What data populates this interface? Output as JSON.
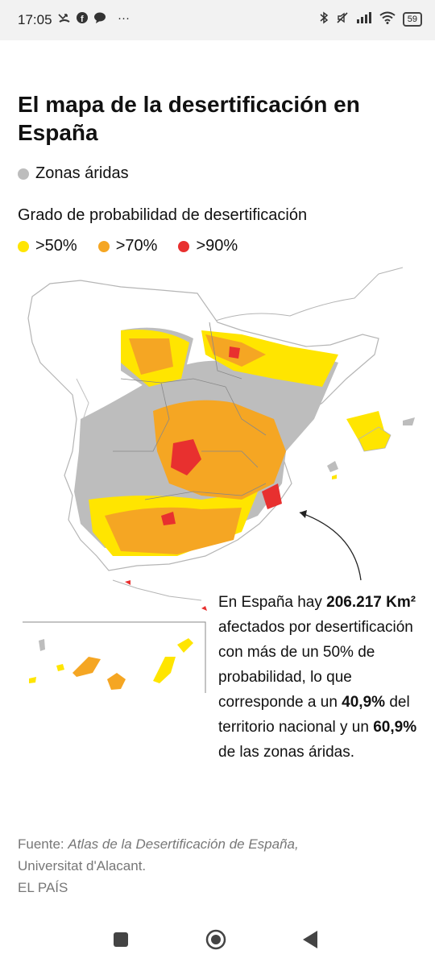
{
  "status_bar": {
    "time": "17:05",
    "left_icons": [
      "missed-call-icon",
      "facebook-icon",
      "chat-bubble-icon",
      "more-icon"
    ],
    "right_icons": [
      "bluetooth-icon",
      "muted-icon",
      "signal-icon",
      "wifi-icon",
      "battery-icon"
    ],
    "more_glyph": "···",
    "battery": "59"
  },
  "article": {
    "title": "El mapa de la desertificación en España",
    "legend_arid_label": "Zonas áridas",
    "legend_heading": "Grado de probabilidad de desertificación",
    "legend_levels": [
      {
        "label": ">50%",
        "color": "#ffe500"
      },
      {
        "label": ">70%",
        "color": "#f5a623"
      },
      {
        "label": ">90%",
        "color": "#e8302f"
      }
    ],
    "colors": {
      "arid": "#bdbdbd",
      "border": "#888888",
      "land_outline": "#b5b5b5"
    },
    "callout": {
      "p1": "En España hay ",
      "b1": "206.217 Km²",
      "p2": " afectados por desertificación con más de un 50% de probabilidad, lo que corresponde a un ",
      "b2": "40,9%",
      "p3": " del territorio nacional y un ",
      "b3": "60,9%",
      "p4": " de las zonas áridas."
    },
    "source": {
      "prefix": "Fuente: ",
      "title_italic": "Atlas de la Desertificación de España,",
      "institution": "Universitat d'Alacant.",
      "publisher": "EL PAÍS"
    }
  },
  "nav_bar": {
    "buttons": [
      "recent-apps-button",
      "home-button",
      "back-button"
    ]
  }
}
